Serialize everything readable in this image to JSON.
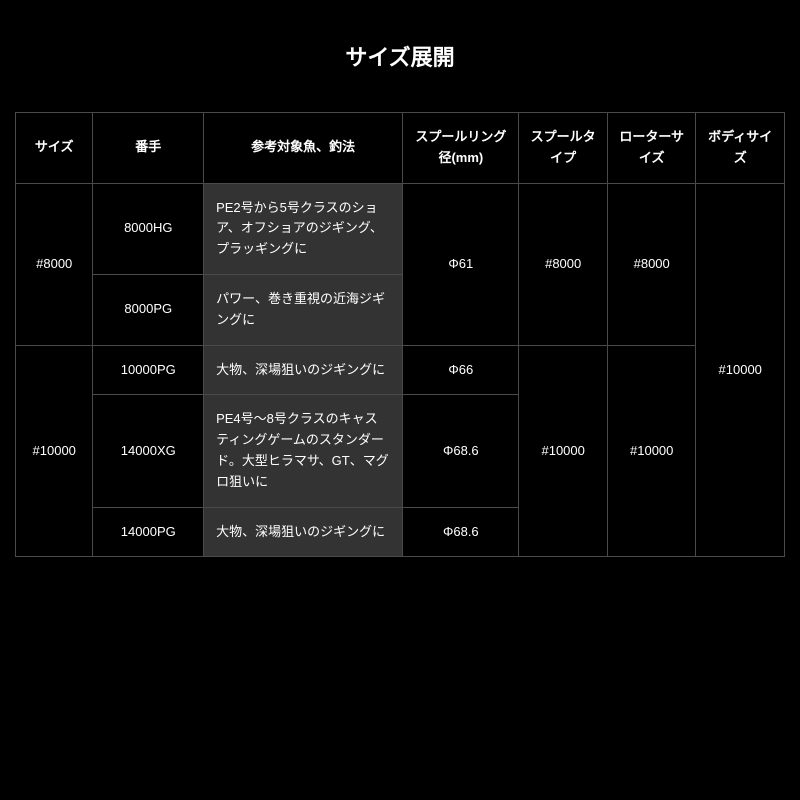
{
  "title": "サイズ展開",
  "columns": [
    "サイズ",
    "番手",
    "参考対象魚、釣法",
    "スプールリング径(mm)",
    "スプールタイプ",
    "ローターサイズ",
    "ボディサイズ"
  ],
  "sizes": {
    "size8000": "#8000",
    "size10000": "#10000"
  },
  "models": {
    "m8000hg": "8000HG",
    "m8000pg": "8000PG",
    "m10000pg": "10000PG",
    "m14000xg": "14000XG",
    "m14000pg": "14000PG"
  },
  "descriptions": {
    "d8000hg": "PE2号から5号クラスのショア、オフショアのジギング、プラッギングに",
    "d8000pg": "パワー、巻き重視の近海ジギングに",
    "d10000pg": "大物、深場狙いのジギングに",
    "d14000xg": "PE4号〜8号クラスのキャスティングゲームのスタンダード。大型ヒラマサ、GT、マグロ狙いに",
    "d14000pg": "大物、深場狙いのジギングに"
  },
  "spool_ring": {
    "r8000": "Φ61",
    "r10000pg": "Φ66",
    "r14000xg": "Φ68.6",
    "r14000pg": "Φ68.6"
  },
  "spool_type": {
    "t8000": "#8000",
    "t10000": "#10000"
  },
  "rotor_size": {
    "rs8000": "#8000",
    "rs10000": "#10000"
  },
  "body_size": {
    "bs": "#10000"
  },
  "colors": {
    "background": "#000000",
    "text": "#ffffff",
    "border": "#4a4a4a",
    "desc_bg": "#333333"
  }
}
